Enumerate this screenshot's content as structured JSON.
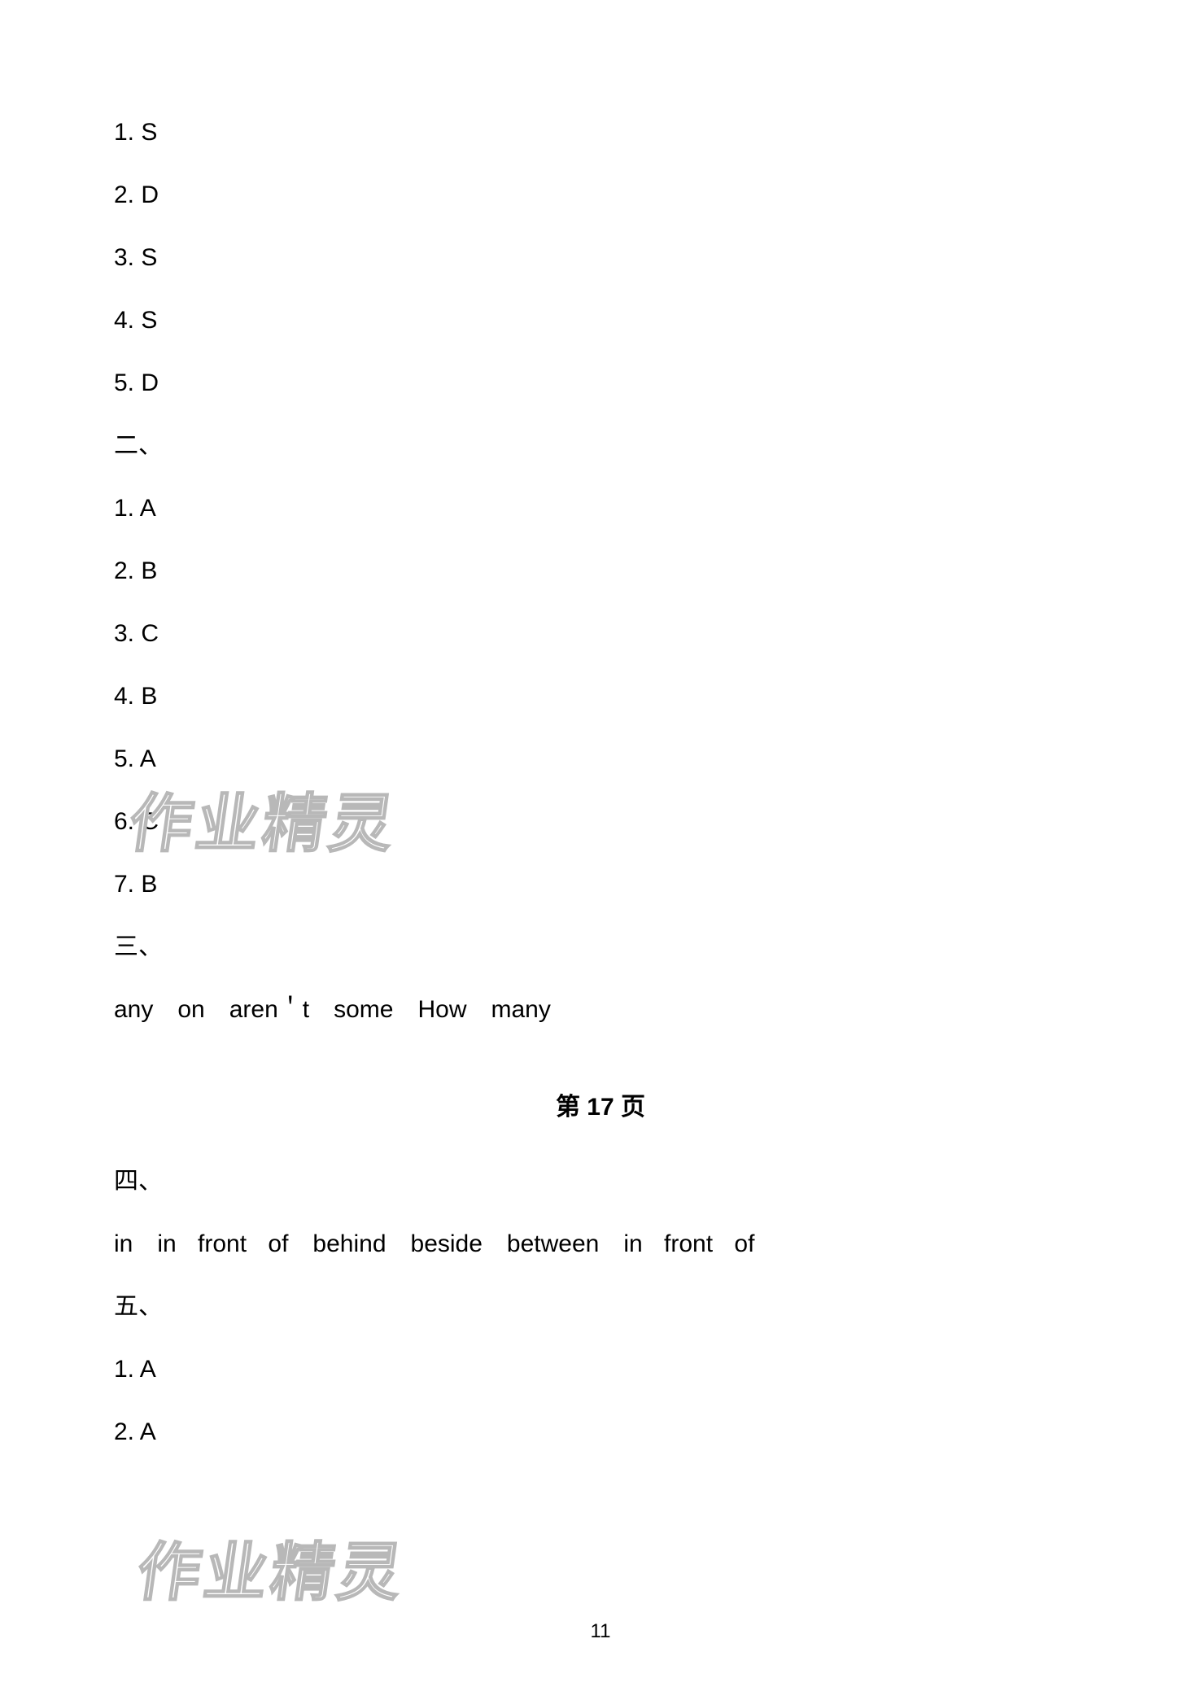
{
  "section1": {
    "items": [
      {
        "num": "1.",
        "answer": "S"
      },
      {
        "num": "2.",
        "answer": "D"
      },
      {
        "num": "3.",
        "answer": "S"
      },
      {
        "num": "4.",
        "answer": "S"
      },
      {
        "num": "5.",
        "answer": "D"
      }
    ]
  },
  "section2": {
    "heading": "二、",
    "items": [
      {
        "num": "1.",
        "answer": "A"
      },
      {
        "num": "2.",
        "answer": "B"
      },
      {
        "num": "3.",
        "answer": "C"
      },
      {
        "num": "4.",
        "answer": "B"
      },
      {
        "num": "5.",
        "answer": "A"
      },
      {
        "num": "6.",
        "answer": "C"
      },
      {
        "num": "7.",
        "answer": "B"
      }
    ]
  },
  "section3": {
    "heading": "三、",
    "answers": "any　on　aren＇t　some　How　many"
  },
  "pageHeader": "第 17 页",
  "section4": {
    "heading": "四、",
    "answers": "in　in front of　behind　beside　between　in front of"
  },
  "section5": {
    "heading": "五、",
    "items": [
      {
        "num": "1.",
        "answer": "A"
      },
      {
        "num": "2.",
        "answer": "A"
      }
    ]
  },
  "watermarkText": "作业精灵",
  "pageNumber": "11",
  "colors": {
    "background": "#ffffff",
    "text": "#000000",
    "watermarkStroke": "#b8b8b8"
  },
  "typography": {
    "bodyFontSize": 30,
    "headerFontSize": 30,
    "watermarkFontSize": 78,
    "pageNumberFontSize": 24
  }
}
